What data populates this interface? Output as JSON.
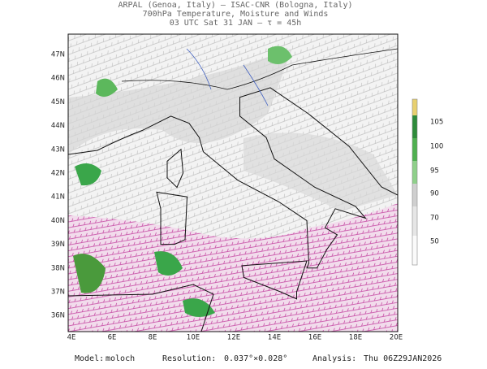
{
  "header": {
    "lines": [
      "ARPAL (Genoa, Italy)  —  ISAC-CNR (Bologna, Italy)",
      "700hPa Temperature, Moisture and Winds",
      "03 UTC Sat 31 JAN  —  τ = 45h"
    ]
  },
  "map": {
    "lat_labels": [
      "47N",
      "46N",
      "45N",
      "44N",
      "43N",
      "42N",
      "41N",
      "40N",
      "39N",
      "38N",
      "37N",
      "36N"
    ],
    "lon_labels": [
      "4E",
      "6E",
      "8E",
      "10E",
      "12E",
      "14E",
      "16E",
      "18E",
      "20E"
    ]
  },
  "colorbar": {
    "labels": [
      "105",
      "100",
      "95",
      "90",
      "70",
      "50"
    ]
  },
  "footer": {
    "model_label": "Model:",
    "model": "moloch",
    "resolution_label": "Resolution:",
    "resolution": "0.037°×0.028°",
    "analysis_label": "Analysis:",
    "analysis": "Thu 06Z29JAN2026"
  }
}
